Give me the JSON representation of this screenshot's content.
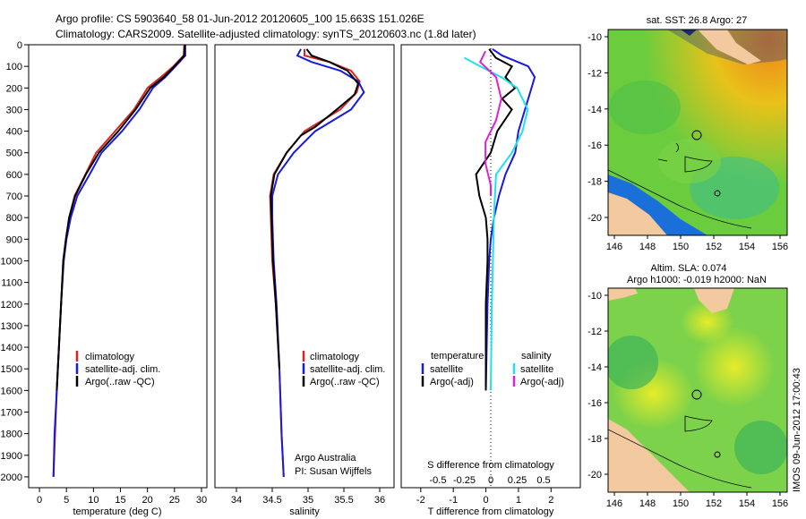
{
  "header": {
    "line1": "Argo profile: CS 5903640_58 01-Jun-2012 20120605_100 15.663S 151.026E",
    "line2": "Climatology: CARS2009. Satellite-adjusted climatology: synTS_20120603.nc (1.8d later)"
  },
  "colors": {
    "red": "#dd2222",
    "blue": "#1a1adb",
    "black": "#000000",
    "cyan": "#22e0ee",
    "magenta": "#e020d8"
  },
  "depth_ticks": [
    "0",
    "100",
    "200",
    "300",
    "400",
    "500",
    "600",
    "700",
    "800",
    "900",
    "1000",
    "1100",
    "1200",
    "1300",
    "1400",
    "1500",
    "1600",
    "1700",
    "1800",
    "1900",
    "2000"
  ],
  "temp_panel": {
    "legend": [
      "climatology",
      "satellite-adj. clim.",
      "Argo(..raw -QC)"
    ],
    "xticks": [
      "0",
      "5",
      "10",
      "15",
      "20",
      "25",
      "30"
    ]
  },
  "sal_panel": {
    "legend": [
      "climatology",
      "satellite-adj. clim.",
      "Argo(..raw -QC)"
    ],
    "xticks": [
      "34",
      "34.5",
      "35",
      "35.5",
      "36"
    ],
    "credit1": "Argo Australia",
    "credit2": "PI: Susan Wijffels"
  },
  "diff_panel": {
    "legend_temp_title": "temperature",
    "legend_sal_title": "salinity",
    "legend_satellite": "satellite",
    "legend_argo": "Argo(-adj)",
    "s_label": "S difference from climatology",
    "s_ticks": [
      "-0.5",
      "-0.25",
      "0",
      "0.25",
      "0.5"
    ],
    "t_ticks": [
      "-2",
      "-1",
      "0",
      "1",
      "2"
    ]
  },
  "map1": {
    "title": "sat. SST: 26.8 Argo: 27",
    "yticks": [
      "-10",
      "-12",
      "-14",
      "-16",
      "-18",
      "-20"
    ],
    "xticks": [
      "146",
      "148",
      "150",
      "152",
      "154",
      "156"
    ]
  },
  "map2": {
    "title1": "Altim. SLA: 0.074",
    "title2": "Argo h1000: -0.019 h2000: NaN",
    "yticks": [
      "-10",
      "-12",
      "-14",
      "-16",
      "-18",
      "-20"
    ],
    "xticks": [
      "146",
      "148",
      "150",
      "152",
      "154",
      "156"
    ]
  },
  "footer": {
    "stamp": "IMOS 09-Jun-2012 17:00:43"
  },
  "chart_data": [
    {
      "type": "line",
      "title": "",
      "xlabel": "temperature (deg C)",
      "ylabel": "",
      "xlim": [
        -2,
        31
      ],
      "ylim": [
        2050,
        0
      ],
      "series": [
        {
          "name": "climatology",
          "color": "red",
          "points": [
            [
              26.8,
              0
            ],
            [
              26.7,
              50
            ],
            [
              24.8,
              100
            ],
            [
              22.5,
              150
            ],
            [
              20,
              200
            ],
            [
              17.5,
              300
            ],
            [
              14,
              400
            ],
            [
              10.5,
              500
            ],
            [
              8.5,
              600
            ],
            [
              6.5,
              700
            ],
            [
              5.5,
              800
            ],
            [
              4.9,
              900
            ],
            [
              4.4,
              1000
            ],
            [
              4,
              1200
            ],
            [
              3.6,
              1400
            ],
            [
              3.2,
              1600
            ],
            [
              2.9,
              1800
            ],
            [
              2.6,
              2000
            ]
          ]
        },
        {
          "name": "satellite-adj. clim.",
          "color": "blue",
          "points": [
            [
              27,
              0
            ],
            [
              27,
              50
            ],
            [
              25.2,
              100
            ],
            [
              23.3,
              150
            ],
            [
              21,
              200
            ],
            [
              18.5,
              300
            ],
            [
              15.3,
              400
            ],
            [
              11.5,
              500
            ],
            [
              9.3,
              600
            ],
            [
              7,
              700
            ],
            [
              5.8,
              800
            ],
            [
              5,
              900
            ],
            [
              4.5,
              1000
            ],
            [
              4,
              1200
            ],
            [
              3.6,
              1400
            ],
            [
              3.2,
              1600
            ],
            [
              2.8,
              1800
            ],
            [
              2.6,
              2000
            ]
          ]
        },
        {
          "name": "Argo(..raw -QC)",
          "color": "black",
          "points": [
            [
              26.9,
              0
            ],
            [
              26.8,
              50
            ],
            [
              25,
              100
            ],
            [
              23,
              150
            ],
            [
              20.5,
              200
            ],
            [
              17.8,
              300
            ],
            [
              14.6,
              400
            ],
            [
              11,
              500
            ],
            [
              8.6,
              600
            ],
            [
              6.6,
              700
            ],
            [
              5.5,
              800
            ],
            [
              4.9,
              900
            ],
            [
              4.4,
              1000
            ],
            [
              4,
              1200
            ],
            [
              3.6,
              1400
            ],
            [
              3.2,
              1600
            ]
          ]
        }
      ]
    },
    {
      "type": "line",
      "title": "",
      "xlabel": "salinity",
      "ylabel": "",
      "xlim": [
        33.7,
        36.2
      ],
      "ylim": [
        2050,
        0
      ],
      "series": [
        {
          "name": "climatology",
          "color": "red",
          "points": [
            [
              34.95,
              20
            ],
            [
              34.95,
              50
            ],
            [
              35.3,
              80
            ],
            [
              35.6,
              120
            ],
            [
              35.72,
              170
            ],
            [
              35.68,
              220
            ],
            [
              35.45,
              300
            ],
            [
              35.2,
              350
            ],
            [
              34.95,
              400
            ],
            [
              34.7,
              500
            ],
            [
              34.52,
              600
            ],
            [
              34.47,
              700
            ],
            [
              34.48,
              800
            ],
            [
              34.5,
              1000
            ],
            [
              34.55,
              1200
            ],
            [
              34.6,
              1500
            ],
            [
              34.63,
              1800
            ],
            [
              34.66,
              2000
            ]
          ]
        },
        {
          "name": "satellite-adj. clim.",
          "color": "blue",
          "points": [
            [
              34.9,
              20
            ],
            [
              34.85,
              50
            ],
            [
              35.05,
              80
            ],
            [
              35.45,
              120
            ],
            [
              35.7,
              170
            ],
            [
              35.78,
              220
            ],
            [
              35.6,
              300
            ],
            [
              35.35,
              350
            ],
            [
              35.1,
              400
            ],
            [
              34.8,
              500
            ],
            [
              34.58,
              600
            ],
            [
              34.5,
              700
            ],
            [
              34.5,
              800
            ],
            [
              34.52,
              1000
            ],
            [
              34.56,
              1200
            ],
            [
              34.6,
              1500
            ],
            [
              34.63,
              1800
            ],
            [
              34.66,
              2000
            ]
          ]
        },
        {
          "name": "Argo(..raw -QC)",
          "color": "black",
          "points": [
            [
              34.98,
              20
            ],
            [
              35.05,
              50
            ],
            [
              35.3,
              80
            ],
            [
              35.55,
              120
            ],
            [
              35.7,
              180
            ],
            [
              35.65,
              230
            ],
            [
              35.4,
              300
            ],
            [
              35.1,
              380
            ],
            [
              34.9,
              420
            ],
            [
              34.7,
              500
            ],
            [
              34.53,
              600
            ],
            [
              34.48,
              700
            ],
            [
              34.49,
              800
            ],
            [
              34.51,
              1000
            ],
            [
              34.55,
              1200
            ],
            [
              34.6,
              1500
            ]
          ]
        }
      ]
    },
    {
      "type": "line",
      "title": "",
      "xlabel": "T difference from climatology",
      "ylabel": "",
      "xlim": [
        -2.6,
        2.9
      ],
      "ylim": [
        2050,
        0
      ],
      "series": [
        {
          "name": "temperature satellite",
          "color": "blue",
          "axis": "T",
          "points": [
            [
              0.2,
              20
            ],
            [
              0.5,
              50
            ],
            [
              1.3,
              100
            ],
            [
              1.5,
              150
            ],
            [
              1.4,
              200
            ],
            [
              1.2,
              300
            ],
            [
              1,
              400
            ],
            [
              0.9,
              500
            ],
            [
              0.6,
              600
            ],
            [
              0.4,
              700
            ],
            [
              0.25,
              800
            ],
            [
              0.15,
              900
            ],
            [
              0.1,
              1000
            ],
            [
              0.05,
              1200
            ],
            [
              0,
              1600
            ]
          ]
        },
        {
          "name": "temperature Argo(-adj)",
          "color": "black",
          "axis": "T",
          "points": [
            [
              0.1,
              20
            ],
            [
              0.3,
              60
            ],
            [
              0.8,
              100
            ],
            [
              0.6,
              150
            ],
            [
              0.9,
              200
            ],
            [
              0.5,
              250
            ],
            [
              0.8,
              300
            ],
            [
              0.35,
              400
            ],
            [
              0.15,
              500
            ],
            [
              -0.3,
              600
            ],
            [
              -0.2,
              700
            ],
            [
              0,
              800
            ],
            [
              0.05,
              900
            ],
            [
              0.05,
              1000
            ],
            [
              0,
              1200
            ],
            [
              0,
              1600
            ]
          ]
        },
        {
          "name": "salinity satellite",
          "color": "cyan",
          "axis": "S",
          "points": [
            [
              -0.25,
              60
            ],
            [
              -0.1,
              100
            ],
            [
              0.1,
              150
            ],
            [
              0.25,
              200
            ],
            [
              0.35,
              300
            ],
            [
              0.3,
              400
            ],
            [
              0.2,
              500
            ],
            [
              0.05,
              600
            ],
            [
              0.04,
              700
            ],
            [
              0.03,
              800
            ],
            [
              0.02,
              1000
            ],
            [
              0.01,
              1200
            ],
            [
              0,
              1600
            ]
          ]
        },
        {
          "name": "salinity Argo(-adj)",
          "color": "magenta",
          "axis": "S",
          "points": [
            [
              -0.05,
              30
            ],
            [
              -0.1,
              80
            ],
            [
              0.05,
              150
            ],
            [
              0.1,
              250
            ],
            [
              0.05,
              350
            ],
            [
              -0.05,
              450
            ],
            [
              -0.05,
              550
            ],
            [
              0,
              650
            ],
            [
              0,
              700
            ]
          ]
        }
      ]
    }
  ]
}
